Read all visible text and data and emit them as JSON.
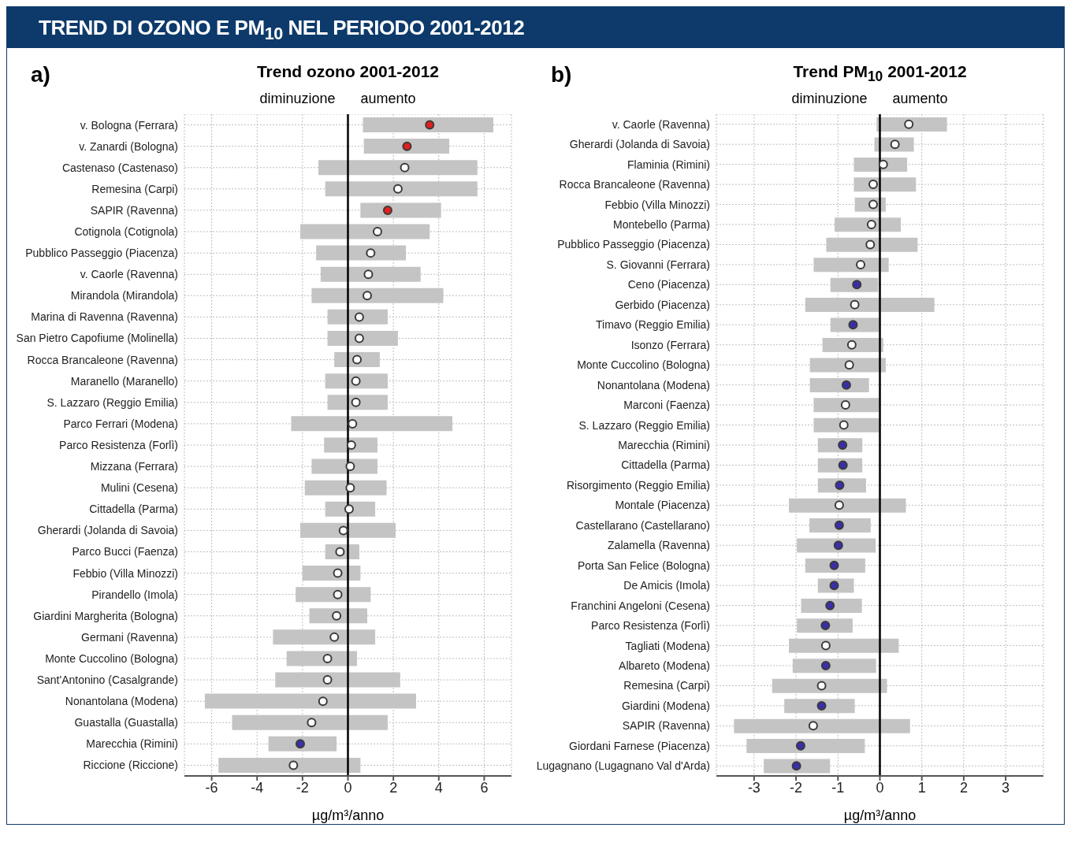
{
  "chart_data": [
    {
      "type": "bar",
      "orientation": "horizontal",
      "title": "TREND DI OZONO E PM$_{10}$ NEL PERIODO 2001-2012",
      "subtitle": "Trend ozono 2001-2012",
      "xlabel": "µg/m³/anno",
      "annotations": [
        "a)",
        "diminuzione",
        "aumento"
      ],
      "categories": [
        "v. Bologna (Ferrara)",
        "v. Zanardi (Bologna)",
        "Castenaso (Castenaso)",
        "Remesina (Carpi)",
        "SAPIR (Ravenna)",
        "Cotignola (Cotignola)",
        "Pubblico Passeggio (Piacenza)",
        "v. Caorle (Ravenna)",
        "Mirandola (Mirandola)",
        "Marina di Ravenna (Ravenna)",
        "San Pietro Capofiume (Molinella)",
        "Rocca Brancaleone (Ravenna)",
        "Maranello (Maranello)",
        "S. Lazzaro (Reggio Emilia)",
        "Parco Ferrari (Modena)",
        "Parco Resistenza (Forlì)",
        "Mizzana (Ferrara)",
        "Mulini (Cesena)",
        "Cittadella (Parma)",
        "Gherardi (Jolanda di Savoia)",
        "Parco Bucci (Faenza)",
        "Febbio (Villa Minozzi)",
        "Pirandello (Imola)",
        "Giardini Margherita (Bologna)",
        "Germani (Ravenna)",
        "Monte Cuccolino (Bologna)",
        "Sant'Antonino (Casalgrande)",
        "Nonantolana (Modena)",
        "Guastalla (Guastalla)",
        "Marecchia (Rimini)",
        "Riccione (Riccione)"
      ],
      "xlim": [
        -7.2,
        7.2
      ],
      "xticks": [
        -6,
        -4,
        -2,
        0,
        2,
        4,
        6
      ],
      "grid": true,
      "marker": "circle",
      "ref_lines": [
        {
          "axis": "x",
          "value": 0,
          "color": "#000000"
        }
      ],
      "series": [
        {
          "color": "#c4c4c4",
          "base": [
            0.66,
            0.7,
            -1.3,
            -1.0,
            0.55,
            -2.1,
            -1.4,
            -1.2,
            -1.6,
            -0.9,
            -0.9,
            -0.6,
            -1.0,
            -0.9,
            -2.5,
            -1.05,
            -1.6,
            -1.9,
            -1.0,
            -2.1,
            -1.0,
            -2.0,
            -2.3,
            -1.7,
            -3.3,
            -2.7,
            -3.2,
            -6.3,
            -5.1,
            -3.5,
            -5.7
          ],
          "values": [
            5.74,
            3.76,
            7.0,
            6.7,
            3.55,
            5.7,
            3.95,
            4.4,
            5.8,
            2.65,
            3.1,
            2.0,
            2.75,
            2.65,
            7.1,
            2.35,
            2.9,
            3.6,
            2.2,
            4.2,
            1.5,
            2.55,
            3.3,
            2.55,
            4.5,
            3.1,
            5.5,
            9.3,
            6.85,
            3.0,
            6.25
          ]
        },
        {
          "type": "scatter",
          "values": [
            3.6,
            2.6,
            2.5,
            2.2,
            1.75,
            1.3,
            1.0,
            0.9,
            0.85,
            0.5,
            0.5,
            0.4,
            0.35,
            0.35,
            0.2,
            0.15,
            0.1,
            0.1,
            0.05,
            -0.2,
            -0.35,
            -0.45,
            -0.45,
            -0.5,
            -0.6,
            -0.9,
            -0.9,
            -1.1,
            -1.6,
            -2.1,
            -2.4
          ],
          "colors": [
            "#e02020",
            "#e02020",
            "#ffffff",
            "#ffffff",
            "#e02020",
            "#ffffff",
            "#ffffff",
            "#ffffff",
            "#ffffff",
            "#ffffff",
            "#ffffff",
            "#ffffff",
            "#ffffff",
            "#ffffff",
            "#ffffff",
            "#ffffff",
            "#ffffff",
            "#ffffff",
            "#ffffff",
            "#ffffff",
            "#ffffff",
            "#ffffff",
            "#ffffff",
            "#ffffff",
            "#ffffff",
            "#ffffff",
            "#ffffff",
            "#ffffff",
            "#ffffff",
            "#3a2fa8",
            "#ffffff"
          ]
        }
      ]
    },
    {
      "type": "bar",
      "orientation": "horizontal",
      "subtitle": "Trend PM$_{10}$ 2001-2012",
      "xlabel": "µg/m³/anno",
      "annotations": [
        "b)",
        "diminuzione",
        "aumento"
      ],
      "categories": [
        "v. Caorle (Ravenna)",
        "Gherardi (Jolanda di Savoia)",
        "Flaminia (Rimini)",
        "Rocca Brancaleone (Ravenna)",
        "Febbio (Villa Minozzi)",
        "Montebello (Parma)",
        "Pubblico Passeggio (Piacenza)",
        "S. Giovanni (Ferrara)",
        "Ceno (Piacenza)",
        "Gerbido (Piacenza)",
        "Timavo (Reggio Emilia)",
        "Isonzo (Ferrara)",
        "Monte Cuccolino (Bologna)",
        "Nonantolana (Modena)",
        "Marconi (Faenza)",
        "S. Lazzaro (Reggio Emilia)",
        "Marecchia (Rimini)",
        "Cittadella (Parma)",
        "Risorgimento (Reggio Emilia)",
        "Montale (Piacenza)",
        "Castellarano (Castellarano)",
        "Zalamella (Ravenna)",
        "Porta San Felice (Bologna)",
        "De Amicis (Imola)",
        "Franchini Angeloni (Cesena)",
        "Parco Resistenza (Forlì)",
        "Tagliati (Modena)",
        "Albareto (Modena)",
        "Remesina (Carpi)",
        "Giardini (Modena)",
        "SAPIR (Ravenna)",
        "Giordani Farnese (Piacenza)",
        "Lugagnano (Lugagnano Val d'Arda)"
      ],
      "xlim": [
        -3.9,
        3.9
      ],
      "xticks": [
        -3,
        -2,
        -1,
        0,
        1,
        2,
        3
      ],
      "grid": true,
      "marker": "circle",
      "ref_lines": [
        {
          "axis": "x",
          "value": 0,
          "color": "#000000"
        }
      ],
      "series": [
        {
          "color": "#c4c4c4",
          "base": [
            -0.08,
            -0.13,
            -0.62,
            -0.62,
            -0.6,
            -1.08,
            -1.28,
            -1.58,
            -1.18,
            -1.78,
            -1.18,
            -1.37,
            -1.67,
            -1.67,
            -1.58,
            -1.58,
            -1.48,
            -1.48,
            -1.48,
            -2.17,
            -1.68,
            -1.98,
            -1.78,
            -1.48,
            -1.88,
            -1.98,
            -2.17,
            -2.08,
            -2.57,
            -2.28,
            -3.48,
            -3.18,
            -2.77
          ],
          "values": [
            1.68,
            0.94,
            1.27,
            1.48,
            0.74,
            1.58,
            2.18,
            1.79,
            1.14,
            3.08,
            1.16,
            1.45,
            1.81,
            1.41,
            1.56,
            1.56,
            1.06,
            1.06,
            1.15,
            2.79,
            1.46,
            1.88,
            1.43,
            0.86,
            1.45,
            1.33,
            2.62,
            1.99,
            2.74,
            1.68,
            4.2,
            2.82,
            1.58
          ]
        },
        {
          "type": "scatter",
          "values": [
            0.69,
            0.36,
            0.08,
            -0.16,
            -0.16,
            -0.2,
            -0.23,
            -0.46,
            -0.55,
            -0.6,
            -0.64,
            -0.67,
            -0.73,
            -0.8,
            -0.82,
            -0.86,
            -0.89,
            -0.88,
            -0.96,
            -0.97,
            -0.97,
            -0.99,
            -1.09,
            -1.09,
            -1.19,
            -1.3,
            -1.29,
            -1.29,
            -1.39,
            -1.39,
            -1.59,
            -1.89,
            -1.99
          ],
          "colors": [
            "#ffffff",
            "#ffffff",
            "#ffffff",
            "#ffffff",
            "#ffffff",
            "#ffffff",
            "#ffffff",
            "#ffffff",
            "#3a2fa8",
            "#ffffff",
            "#3a2fa8",
            "#ffffff",
            "#ffffff",
            "#3a2fa8",
            "#ffffff",
            "#ffffff",
            "#3a2fa8",
            "#3a2fa8",
            "#3a2fa8",
            "#ffffff",
            "#3a2fa8",
            "#3a2fa8",
            "#3a2fa8",
            "#3a2fa8",
            "#3a2fa8",
            "#3a2fa8",
            "#ffffff",
            "#3a2fa8",
            "#ffffff",
            "#3a2fa8",
            "#ffffff",
            "#3a2fa8",
            "#3a2fa8"
          ]
        }
      ]
    }
  ]
}
